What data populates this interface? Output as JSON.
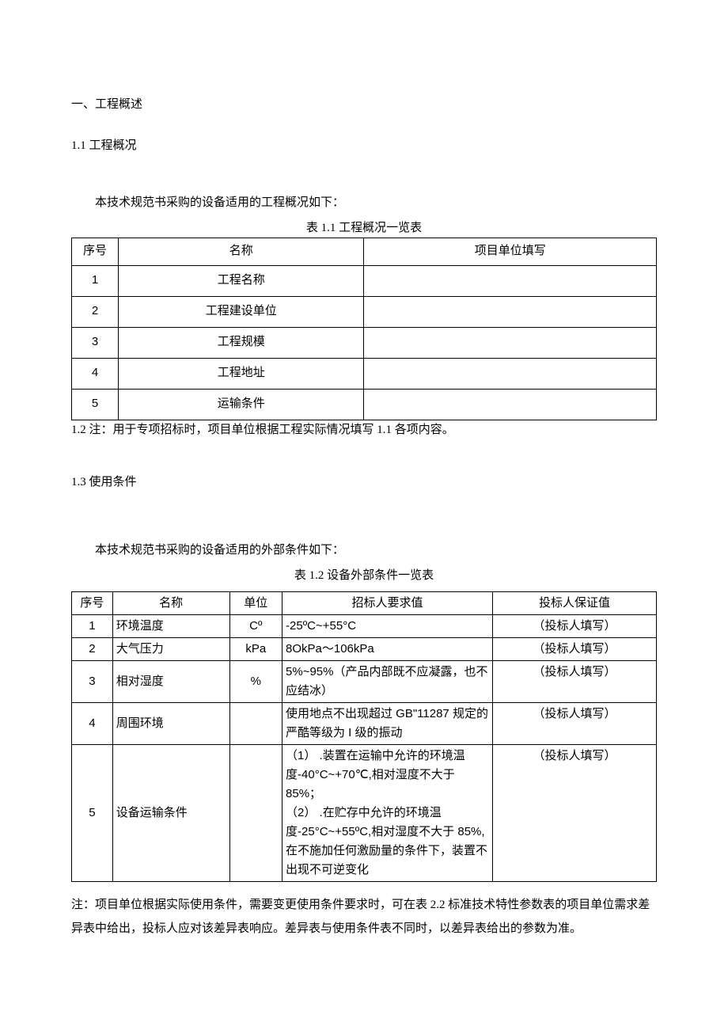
{
  "section1": {
    "heading": "一、工程概述",
    "sub1": {
      "heading": "1.1   工程概况",
      "intro": "本技术规范书采购的设备适用的工程概况如下：",
      "table_caption": "表 1.1 工程概况一览表",
      "columns": [
        "序号",
        "名称",
        "项目单位填写"
      ],
      "rows": [
        {
          "seq": "1",
          "name": "工程名称",
          "value": ""
        },
        {
          "seq": "2",
          "name": "工程建设单位",
          "value": ""
        },
        {
          "seq": "3",
          "name": "工程规模",
          "value": ""
        },
        {
          "seq": "4",
          "name": "工程地址",
          "value": ""
        },
        {
          "seq": "5",
          "name": "运输条件",
          "value": ""
        }
      ],
      "note": "1.2   注：用于专项招标时，项目单位根据工程实际情况填写 1.1 各项内容。"
    },
    "sub3": {
      "heading": "1.3   使用条件",
      "intro": "本技术规范书采购的设备适用的外部条件如下：",
      "table_caption": "表 1.2 设备外部条件一览表",
      "columns": [
        "序号",
        "名称",
        "单位",
        "招标人要求值",
        "投标人保证值"
      ],
      "rows": [
        {
          "seq": "1",
          "name": "环境温度",
          "unit": "Cº",
          "req": "-25ºC~+55°C",
          "bid": "（投标人填写）"
        },
        {
          "seq": "2",
          "name": "大气压力",
          "unit": "kPa",
          "req": "8OkPa～106kPa",
          "bid": "（投标人填写）"
        },
        {
          "seq": "3",
          "name": "相对湿度",
          "unit": "%",
          "req": "5%~95%（产品内部既不应凝露，也不应结冰）",
          "bid": "（投标人填写）"
        },
        {
          "seq": "4",
          "name": "周围环境",
          "unit": "",
          "req": "使用地点不出现超过 GB\"11287 规定的严酷等级为 I 级的振动",
          "bid": "（投标人填写）"
        },
        {
          "seq": "5",
          "name": "设备运输条件",
          "unit": "",
          "req": "（1）   .装置在运输中允许的环境温度-40°C~+70℃,相对湿度不大于85%；\n（2）   .在贮存中允许的环境温度-25°C~+55ºC,相对湿度不大于 85%,在不施加任何激励量的条件下，装置不出现不可逆变化",
          "bid": "（投标人填写）"
        }
      ],
      "footnote": "注：项目单位根据实际使用条件，需要变更使用条件要求时，可在表 2.2 标准技术特性参数表的项目单位需求差异表中给出，投标人应对该差异表响应。差异表与使用条件表不同时，以差异表给出的参数为准。"
    }
  }
}
